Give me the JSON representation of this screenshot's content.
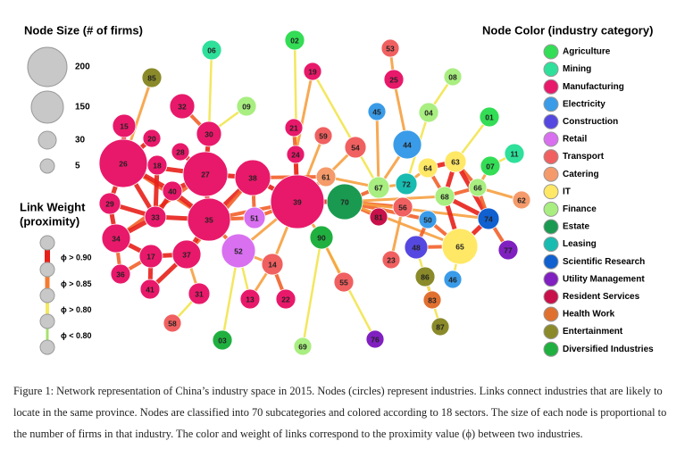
{
  "size_legend": {
    "title": "Node Size (# of firms)",
    "sizes": [
      200,
      150,
      30,
      5
    ]
  },
  "link_legend": {
    "title_lines": [
      "Link Weight",
      "(proximity)"
    ],
    "items": [
      {
        "label": "ϕ > 0.90",
        "color": "#e8201a"
      },
      {
        "label": "ϕ > 0.85",
        "color": "#f47a30"
      },
      {
        "label": "ϕ > 0.80",
        "color": "#f4e860"
      },
      {
        "label": "ϕ < 0.80",
        "color": "#a8e070"
      }
    ]
  },
  "color_legend": {
    "title": "Node Color (industry category)",
    "items": [
      {
        "label": "Agriculture",
        "color": "#33dd55"
      },
      {
        "label": "Mining",
        "color": "#2ee09a"
      },
      {
        "label": "Manufacturing",
        "color": "#e8196a"
      },
      {
        "label": "Electricity",
        "color": "#3a9be8"
      },
      {
        "label": "Construction",
        "color": "#5548e0"
      },
      {
        "label": "Retail",
        "color": "#d870f0"
      },
      {
        "label": "Transport",
        "color": "#f06060"
      },
      {
        "label": "Catering",
        "color": "#f59a6a"
      },
      {
        "label": "IT",
        "color": "#ffe866"
      },
      {
        "label": "Finance",
        "color": "#a8ee80"
      },
      {
        "label": "Estate",
        "color": "#1a9a50"
      },
      {
        "label": "Leasing",
        "color": "#18bbb0"
      },
      {
        "label": "Scientific Research",
        "color": "#1060d0"
      },
      {
        "label": "Utility Management",
        "color": "#8020c0"
      },
      {
        "label": "Resident Services",
        "color": "#c8104a"
      },
      {
        "label": "Health Work",
        "color": "#e07030"
      },
      {
        "label": "Entertainment",
        "color": "#8a8a2a"
      },
      {
        "label": "Diversified Industries",
        "color": "#20b040"
      }
    ]
  },
  "nodes": [
    {
      "label": "02",
      "color": "#33dd55"
    },
    {
      "label": "06",
      "color": "#2ee09a"
    },
    {
      "label": "53",
      "color": "#f06060"
    },
    {
      "label": "19",
      "color": "#e8196a"
    },
    {
      "label": "08",
      "color": "#a8ee80"
    },
    {
      "label": "85",
      "color": "#8a8a2a"
    },
    {
      "label": "25",
      "color": "#e8196a"
    },
    {
      "label": "32",
      "color": "#e8196a"
    },
    {
      "label": "09",
      "color": "#a8ee80"
    },
    {
      "label": "45",
      "color": "#3a9be8"
    },
    {
      "label": "04",
      "color": "#a8ee80"
    },
    {
      "label": "01",
      "color": "#33dd55"
    },
    {
      "label": "15",
      "color": "#e8196a"
    },
    {
      "label": "21",
      "color": "#e8196a"
    },
    {
      "label": "30",
      "color": "#e8196a"
    },
    {
      "label": "59",
      "color": "#f06060"
    },
    {
      "label": "20",
      "color": "#e8196a"
    },
    {
      "label": "44",
      "color": "#3a9be8"
    },
    {
      "label": "54",
      "color": "#f06060"
    },
    {
      "label": "11",
      "color": "#2ee09a"
    },
    {
      "label": "24",
      "color": "#e8196a"
    },
    {
      "label": "28",
      "color": "#e8196a"
    },
    {
      "label": "26",
      "color": "#e8196a"
    },
    {
      "label": "18",
      "color": "#e8196a"
    },
    {
      "label": "27",
      "color": "#e8196a"
    },
    {
      "label": "63",
      "color": "#ffe866"
    },
    {
      "label": "64",
      "color": "#ffe866"
    },
    {
      "label": "07",
      "color": "#33dd55"
    },
    {
      "label": "61",
      "color": "#f59a6a"
    },
    {
      "label": "38",
      "color": "#e8196a"
    },
    {
      "label": "67",
      "color": "#a8ee80"
    },
    {
      "label": "72",
      "color": "#18bbb0"
    },
    {
      "label": "66",
      "color": "#a8ee80"
    },
    {
      "label": "40",
      "color": "#e8196a"
    },
    {
      "label": "39",
      "color": "#e8196a"
    },
    {
      "label": "70",
      "color": "#1a9a50"
    },
    {
      "label": "68",
      "color": "#a8ee80"
    },
    {
      "label": "62",
      "color": "#f59a6a"
    },
    {
      "label": "29",
      "color": "#e8196a"
    },
    {
      "label": "56",
      "color": "#f06060"
    },
    {
      "label": "81",
      "color": "#c8104a"
    },
    {
      "label": "33",
      "color": "#e8196a"
    },
    {
      "label": "51",
      "color": "#d870f0"
    },
    {
      "label": "35",
      "color": "#e8196a"
    },
    {
      "label": "50",
      "color": "#3a9be8"
    },
    {
      "label": "74",
      "color": "#1060d0"
    },
    {
      "label": "90",
      "color": "#20b040"
    },
    {
      "label": "48",
      "color": "#5548e0"
    },
    {
      "label": "65",
      "color": "#ffe866"
    },
    {
      "label": "34",
      "color": "#e8196a"
    },
    {
      "label": "77",
      "color": "#8020c0"
    },
    {
      "label": "52",
      "color": "#d870f0"
    },
    {
      "label": "17",
      "color": "#e8196a"
    },
    {
      "label": "37",
      "color": "#e8196a"
    },
    {
      "label": "23",
      "color": "#f06060"
    },
    {
      "label": "14",
      "color": "#f06060"
    },
    {
      "label": "86",
      "color": "#8a8a2a"
    },
    {
      "label": "36",
      "color": "#e8196a"
    },
    {
      "label": "46",
      "color": "#3a9be8"
    },
    {
      "label": "55",
      "color": "#f06060"
    },
    {
      "label": "41",
      "color": "#e8196a"
    },
    {
      "label": "31",
      "color": "#e8196a"
    },
    {
      "label": "13",
      "color": "#e8196a"
    },
    {
      "label": "22",
      "color": "#e8196a"
    },
    {
      "label": "83",
      "color": "#e07030"
    },
    {
      "label": "58",
      "color": "#f06060"
    },
    {
      "label": "87",
      "color": "#8a8a2a"
    },
    {
      "label": "03",
      "color": "#20b040"
    },
    {
      "label": "76",
      "color": "#8020c0"
    },
    {
      "label": "69",
      "color": "#a8ee80"
    }
  ],
  "caption": "Figure 1: Network representation of China’s industry space in 2015. Nodes (circles) represent industries. Links connect industries that are likely to locate in the same province. Nodes are classified into 70 subcategories and colored according to 18 sectors. The size of each node is proportional to the number of firms in that industry. The color and weight of links correspond to the proximity value (ϕ) between two industries."
}
